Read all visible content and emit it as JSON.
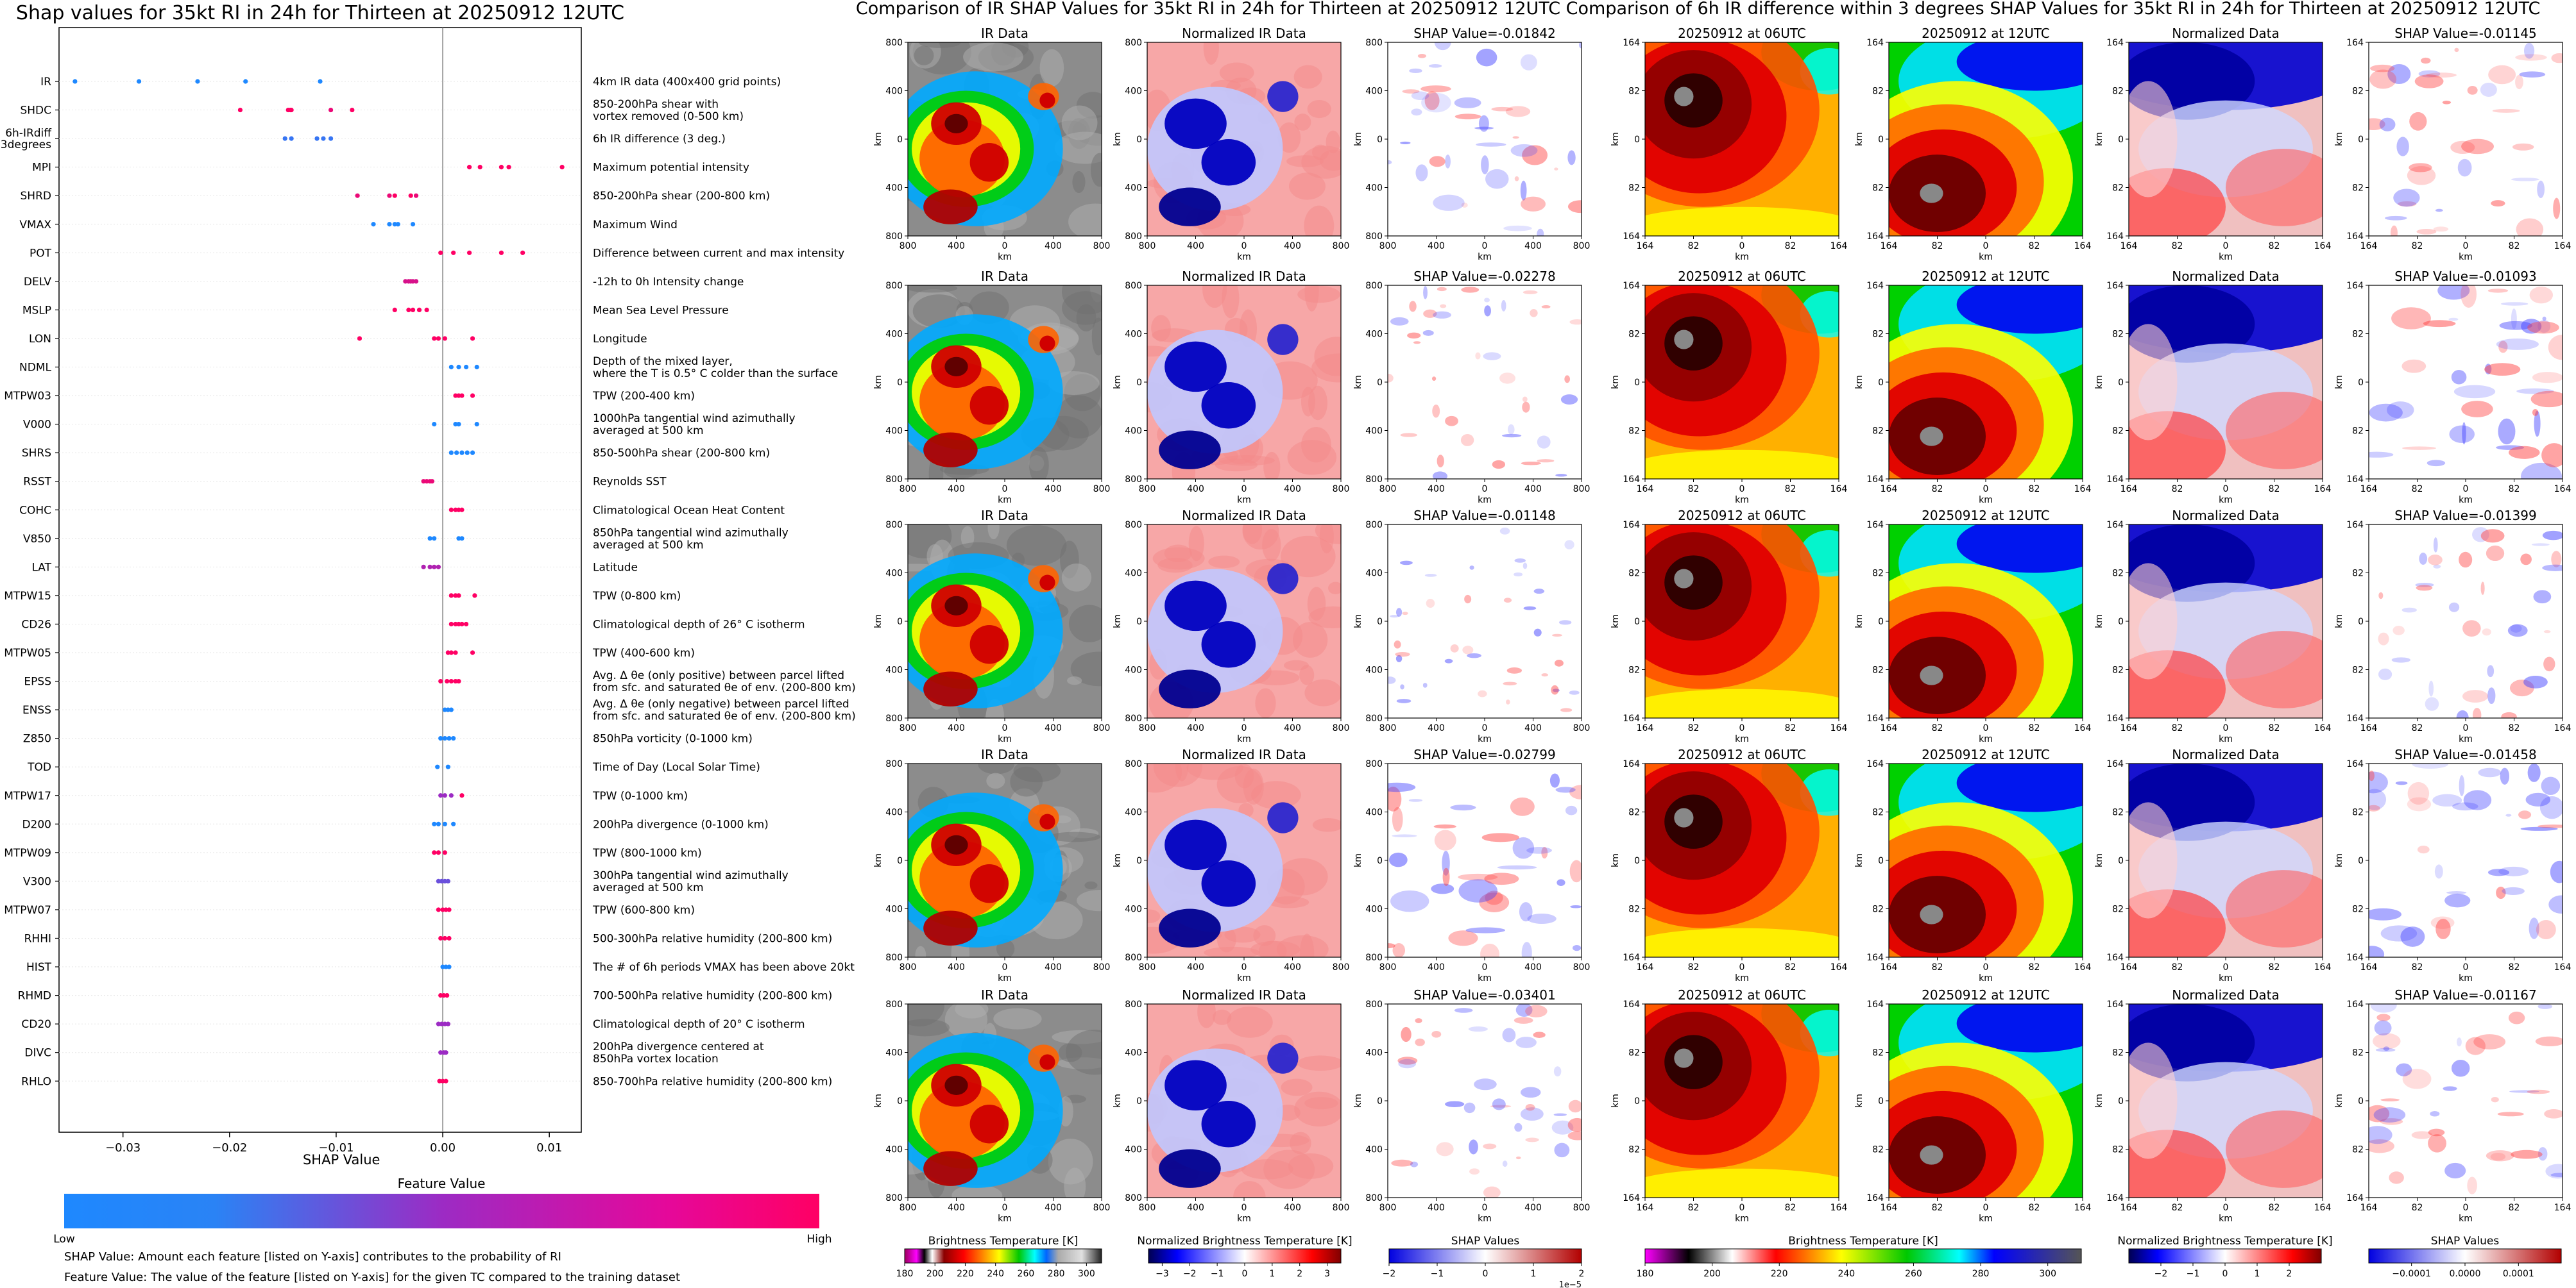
{
  "colors": {
    "low": "#1e88ff",
    "mid": "#9c2bc4",
    "high": "#ff0064",
    "axis": "#000000",
    "gridline": "#e6e6e6"
  },
  "section_titles": {
    "shap": "Shap values for 35kt RI in 24h for Thirteen at 20250912 12UTC",
    "ir": "Comparison of IR SHAP Values for 35kt RI in 24h for Thirteen at 20250912 12UTC",
    "diff": "Comparison of 6h IR difference within 3 degrees SHAP Values for 35kt RI in 24h for Thirteen at 20250912 12UTC"
  },
  "chart_data": [
    {
      "type": "scatter",
      "title": "Shap values for 35kt RI in 24h for Thirteen at 20250912 12UTC",
      "xlabel": "SHAP Value",
      "xlim": [
        -0.036,
        0.013
      ],
      "xticks": [
        {
          "v": -0.03,
          "label": "−0.03"
        },
        {
          "v": -0.02,
          "label": "−0.02"
        },
        {
          "v": -0.01,
          "label": "−0.01"
        },
        {
          "v": 0.0,
          "label": "0.00"
        },
        {
          "v": 0.01,
          "label": "0.01"
        }
      ],
      "features": [
        {
          "code": "IR",
          "desc": "4km IR data (400x400 grid points)",
          "points": [
            [
              -0.0345,
              0
            ],
            [
              -0.0285,
              0
            ],
            [
              -0.023,
              0
            ],
            [
              -0.0185,
              0
            ],
            [
              -0.0115,
              0
            ]
          ]
        },
        {
          "code": "SHDC",
          "desc": "850-200hPa shear with\nvortex removed (0-500 km)",
          "points": [
            [
              -0.019,
              1
            ],
            [
              -0.0145,
              1
            ],
            [
              -0.0143,
              1
            ],
            [
              -0.0142,
              1
            ],
            [
              -0.0105,
              0.9
            ],
            [
              -0.0085,
              1
            ]
          ]
        },
        {
          "code": "6h-IRdiff\n3degrees",
          "desc": "6h IR difference (3 deg.)",
          "points": [
            [
              -0.0148,
              0.1
            ],
            [
              -0.0142,
              0.1
            ],
            [
              -0.0118,
              0.1
            ],
            [
              -0.0112,
              0.1
            ],
            [
              -0.0105,
              0.1
            ]
          ]
        },
        {
          "code": "MPI",
          "desc": "Maximum potential intensity",
          "points": [
            [
              0.0025,
              1
            ],
            [
              0.0035,
              1
            ],
            [
              0.0055,
              1
            ],
            [
              0.0062,
              1
            ],
            [
              0.0112,
              1
            ]
          ]
        },
        {
          "code": "SHRD",
          "desc": "850-200hPa shear (200-800 km)",
          "points": [
            [
              -0.008,
              0.9
            ],
            [
              -0.005,
              0.9
            ],
            [
              -0.0045,
              1
            ],
            [
              -0.003,
              1
            ],
            [
              -0.0025,
              0.9
            ]
          ]
        },
        {
          "code": "VMAX",
          "desc": "Maximum Wind",
          "points": [
            [
              -0.0065,
              0
            ],
            [
              -0.005,
              0
            ],
            [
              -0.0045,
              0
            ],
            [
              -0.0042,
              0
            ],
            [
              -0.0028,
              0
            ]
          ]
        },
        {
          "code": "POT",
          "desc": "Difference between current and max intensity",
          "points": [
            [
              -0.0002,
              1
            ],
            [
              0.001,
              1
            ],
            [
              0.0025,
              1
            ],
            [
              0.0055,
              1
            ],
            [
              0.0075,
              1
            ]
          ]
        },
        {
          "code": "DELV",
          "desc": "-12h to 0h Intensity change",
          "points": [
            [
              -0.0035,
              0.8
            ],
            [
              -0.0032,
              0.8
            ],
            [
              -0.003,
              0.8
            ],
            [
              -0.0028,
              0.8
            ],
            [
              -0.0025,
              0.8
            ]
          ]
        },
        {
          "code": "MSLP",
          "desc": "Mean Sea Level Pressure",
          "points": [
            [
              -0.0045,
              1
            ],
            [
              -0.0032,
              1
            ],
            [
              -0.0028,
              1
            ],
            [
              -0.0022,
              1
            ],
            [
              -0.0015,
              1
            ]
          ]
        },
        {
          "code": "LON",
          "desc": "Longitude",
          "points": [
            [
              -0.0078,
              1
            ],
            [
              -0.0008,
              1
            ],
            [
              -0.0004,
              1
            ],
            [
              0.0002,
              1
            ],
            [
              0.0028,
              1
            ]
          ]
        },
        {
          "code": "NDML",
          "desc": "Depth of the mixed layer,\nwhere the T is 0.5° C colder than the surface",
          "points": [
            [
              0.0008,
              0
            ],
            [
              0.0015,
              0
            ],
            [
              0.0022,
              0
            ],
            [
              0.0032,
              0
            ]
          ]
        },
        {
          "code": "MTPW03",
          "desc": "TPW (200-400 km)",
          "points": [
            [
              0.0012,
              1
            ],
            [
              0.0015,
              1
            ],
            [
              0.0018,
              1
            ],
            [
              0.0028,
              1
            ]
          ]
        },
        {
          "code": "V000",
          "desc": "1000hPa tangential wind azimuthally\naveraged at 500 km",
          "points": [
            [
              -0.0008,
              0
            ],
            [
              0.0012,
              0
            ],
            [
              0.0015,
              0
            ],
            [
              0.0032,
              0
            ]
          ]
        },
        {
          "code": "SHRS",
          "desc": "850-500hPa shear (200-800 km)",
          "points": [
            [
              0.0008,
              0
            ],
            [
              0.0013,
              0
            ],
            [
              0.0018,
              0
            ],
            [
              0.0023,
              0
            ],
            [
              0.0028,
              0
            ]
          ]
        },
        {
          "code": "RSST",
          "desc": "Reynolds SST",
          "points": [
            [
              -0.0018,
              0.9
            ],
            [
              -0.0015,
              0.9
            ],
            [
              -0.0012,
              0.9
            ],
            [
              -0.001,
              0.9
            ]
          ]
        },
        {
          "code": "COHC",
          "desc": "Climatological Ocean Heat Content",
          "points": [
            [
              0.0008,
              1
            ],
            [
              0.0012,
              1
            ],
            [
              0.0015,
              1
            ],
            [
              0.0018,
              1
            ]
          ]
        },
        {
          "code": "V850",
          "desc": "850hPa tangential wind azimuthally\naveraged at 500 km",
          "points": [
            [
              -0.0012,
              0
            ],
            [
              -0.0008,
              0
            ],
            [
              0.0015,
              0
            ],
            [
              0.0018,
              0
            ]
          ]
        },
        {
          "code": "LAT",
          "desc": "Latitude",
          "points": [
            [
              -0.0018,
              0.6
            ],
            [
              -0.0012,
              0.6
            ],
            [
              -0.0008,
              0.6
            ],
            [
              -0.0004,
              0.6
            ]
          ]
        },
        {
          "code": "MTPW15",
          "desc": "TPW (0-800 km)",
          "points": [
            [
              0.0008,
              1
            ],
            [
              0.0012,
              1
            ],
            [
              0.0015,
              1
            ],
            [
              0.003,
              1
            ]
          ]
        },
        {
          "code": "CD26",
          "desc": "Climatological depth of 26° C isotherm",
          "points": [
            [
              0.0008,
              1
            ],
            [
              0.0012,
              1
            ],
            [
              0.0015,
              1
            ],
            [
              0.0018,
              1
            ],
            [
              0.0022,
              1
            ]
          ]
        },
        {
          "code": "MTPW05",
          "desc": "TPW (400-600 km)",
          "points": [
            [
              0.0005,
              1
            ],
            [
              0.0008,
              1
            ],
            [
              0.0012,
              1
            ],
            [
              0.0028,
              1
            ]
          ]
        },
        {
          "code": "EPSS",
          "desc": "Avg. Δ θe (only positive) between parcel lifted\nfrom sfc. and saturated θe of env. (200-800 km)",
          "points": [
            [
              -0.0002,
              1
            ],
            [
              0.0004,
              1
            ],
            [
              0.0008,
              1
            ],
            [
              0.0012,
              1
            ],
            [
              0.0015,
              1
            ]
          ]
        },
        {
          "code": "ENSS",
          "desc": "Avg. Δ θe (only negative) between parcel lifted\nfrom sfc. and saturated θe of env. (200-800 km)",
          "points": [
            [
              0.0002,
              0
            ],
            [
              0.0005,
              0
            ],
            [
              0.0008,
              0
            ]
          ]
        },
        {
          "code": "Z850",
          "desc": "850hPa vorticity (0-1000 km)",
          "points": [
            [
              -0.0002,
              0
            ],
            [
              0.0002,
              0
            ],
            [
              0.0006,
              0
            ],
            [
              0.001,
              0
            ]
          ]
        },
        {
          "code": "TOD",
          "desc": "Time of Day (Local Solar Time)",
          "points": [
            [
              -0.0005,
              0
            ],
            [
              0.0005,
              0
            ]
          ]
        },
        {
          "code": "MTPW17",
          "desc": "TPW (0-1000 km)",
          "points": [
            [
              -0.0002,
              0.5
            ],
            [
              0.0002,
              0.5
            ],
            [
              0.0008,
              0.5
            ],
            [
              0.0018,
              1
            ]
          ]
        },
        {
          "code": "D200",
          "desc": "200hPa divergence (0-1000 km)",
          "points": [
            [
              -0.0008,
              0
            ],
            [
              -0.0004,
              0
            ],
            [
              0.0002,
              0
            ],
            [
              0.001,
              0
            ]
          ]
        },
        {
          "code": "MTPW09",
          "desc": "TPW (800-1000 km)",
          "points": [
            [
              -0.0008,
              1
            ],
            [
              -0.0004,
              1
            ],
            [
              0.0002,
              1
            ]
          ]
        },
        {
          "code": "V300",
          "desc": "300hPa tangential wind azimuthally\naveraged at 500 km",
          "points": [
            [
              -0.0004,
              0.3
            ],
            [
              -0.0001,
              0.3
            ],
            [
              0.0002,
              0.3
            ],
            [
              0.0005,
              0.3
            ]
          ]
        },
        {
          "code": "MTPW07",
          "desc": "TPW (600-800 km)",
          "points": [
            [
              -0.0004,
              1
            ],
            [
              0.0,
              1
            ],
            [
              0.0003,
              1
            ],
            [
              0.0006,
              1
            ]
          ]
        },
        {
          "code": "RHHI",
          "desc": "500-300hPa relative humidity (200-800 km)",
          "points": [
            [
              -0.0002,
              1
            ],
            [
              0.0002,
              1
            ],
            [
              0.0006,
              1
            ]
          ]
        },
        {
          "code": "HIST",
          "desc": "The # of 6h periods VMAX has been above 20kt",
          "points": [
            [
              0.0,
              0
            ],
            [
              0.0003,
              0
            ],
            [
              0.0006,
              0
            ]
          ]
        },
        {
          "code": "RHMD",
          "desc": "700-500hPa relative humidity (200-800 km)",
          "points": [
            [
              -0.0002,
              1
            ],
            [
              0.0001,
              1
            ],
            [
              0.0004,
              1
            ]
          ]
        },
        {
          "code": "CD20",
          "desc": "Climatological depth of 20° C isotherm",
          "points": [
            [
              -0.0004,
              0.5
            ],
            [
              -0.0001,
              0.5
            ],
            [
              0.0002,
              0.5
            ],
            [
              0.0005,
              0.5
            ]
          ]
        },
        {
          "code": "DIVC",
          "desc": "200hPa divergence centered at\n850hPa vortex location",
          "points": [
            [
              -0.0002,
              0.5
            ],
            [
              0.0001,
              0.5
            ],
            [
              0.0003,
              0.5
            ]
          ]
        },
        {
          "code": "RHLO",
          "desc": "850-700hPa relative humidity (200-800 km)",
          "points": [
            [
              -0.0003,
              1
            ],
            [
              0.0,
              1
            ],
            [
              0.0003,
              1
            ]
          ]
        }
      ],
      "colorbar": {
        "title": "Feature Value",
        "low_label": "Low",
        "high_label": "High"
      },
      "notes": [
        "SHAP Value: Amount each feature [listed on Y-axis] contributes to the probability of RI",
        "Feature Value: The value of the feature [listed on Y-axis] for the given TC compared to the training dataset"
      ]
    },
    {
      "type": "heatmap",
      "title": "Comparison of IR SHAP Values for 35kt RI in 24h for Thirteen at 20250912 12UTC",
      "column_titles": [
        "IR Data",
        "Normalized IR Data"
      ],
      "shap_titles": [
        "SHAP Value=-0.01842",
        "SHAP Value=-0.02278",
        "SHAP Value=-0.01148",
        "SHAP Value=-0.02799",
        "SHAP Value=-0.03401"
      ],
      "axis_label": "km",
      "yticks": [
        "800",
        "400",
        "0",
        "400",
        "800"
      ],
      "xticks": [
        "800",
        "400",
        "0",
        "400",
        "800"
      ],
      "colorbars": [
        {
          "title": "Brightness Temperature [K]",
          "ticks": [
            "180",
            "200",
            "220",
            "240",
            "260",
            "280",
            "300"
          ],
          "range": [
            180,
            310
          ]
        },
        {
          "title": "Normalized Brightness Temperature [K]",
          "ticks": [
            "−3",
            "−2",
            "−1",
            "0",
            "1",
            "2",
            "3"
          ],
          "range": [
            -3.5,
            3.5
          ]
        },
        {
          "title": "SHAP Values",
          "ticks": [
            "−2",
            "−1",
            "0",
            "1",
            "2"
          ],
          "range": [
            -2,
            2
          ],
          "exponent": "1e−5"
        }
      ]
    },
    {
      "type": "heatmap",
      "title": "Comparison of 6h IR difference within 3 degrees SHAP Values for 35kt RI in 24h for Thirteen at 20250912 12UTC",
      "column_titles": [
        "20250912 at 06UTC",
        "20250912 at 12UTC",
        "Normalized Data"
      ],
      "shap_titles": [
        "SHAP Value=-0.01145",
        "SHAP Value=-0.01093",
        "SHAP Value=-0.01399",
        "SHAP Value=-0.01458",
        "SHAP Value=-0.01167"
      ],
      "axis_label": "km",
      "yticks": [
        "164",
        "82",
        "0",
        "82",
        "164"
      ],
      "xticks": [
        "164",
        "82",
        "0",
        "82",
        "164"
      ],
      "colorbars": [
        {
          "title": "Brightness Temperature [K]",
          "ticks": [
            "180",
            "200",
            "220",
            "240",
            "260",
            "280",
            "300"
          ],
          "range": [
            180,
            310
          ]
        },
        {
          "title": "Normalized Brightness Temperature [K]",
          "ticks": [
            "−2",
            "−1",
            "0",
            "1",
            "2"
          ],
          "range": [
            -3,
            3
          ]
        },
        {
          "title": "SHAP Values",
          "ticks": [
            "−0.0001",
            "0.0000",
            "0.0001"
          ],
          "range": [
            -0.00018,
            0.00018
          ]
        }
      ]
    }
  ]
}
